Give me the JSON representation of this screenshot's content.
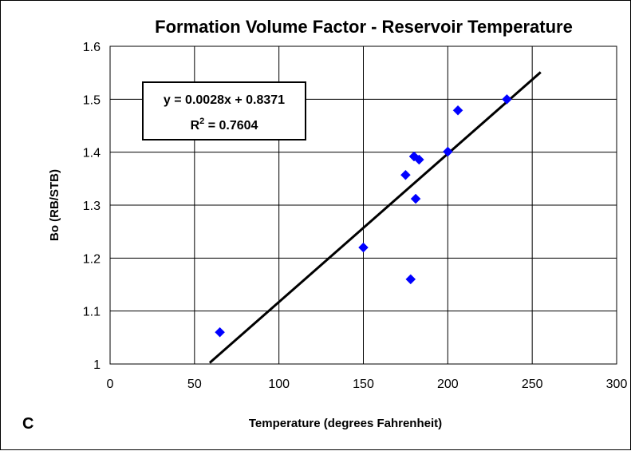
{
  "chart_data": {
    "type": "scatter",
    "title": "Formation Volume Factor - Reservoir Temperature",
    "xlabel": "Temperature (degrees Fahrenheit)",
    "ylabel": "Bo (RB/STB)",
    "xlim": [
      0,
      300
    ],
    "ylim": [
      1,
      1.6
    ],
    "x_ticks": [
      0,
      50,
      100,
      150,
      200,
      250,
      300
    ],
    "y_ticks": [
      1,
      1.1,
      1.2,
      1.3,
      1.4,
      1.5,
      1.6
    ],
    "x_tick_labels": [
      "0",
      "50",
      "100",
      "150",
      "200",
      "250",
      "300"
    ],
    "y_tick_labels": [
      "1",
      "1.1",
      "1.2",
      "1.3",
      "1.4",
      "1.5",
      "1.6"
    ],
    "grid": true,
    "series": [
      {
        "marker": "diamond",
        "color": "#0000ff",
        "points": [
          {
            "x": 65,
            "y": 1.06
          },
          {
            "x": 150,
            "y": 1.22
          },
          {
            "x": 175,
            "y": 1.357
          },
          {
            "x": 178,
            "y": 1.16
          },
          {
            "x": 180,
            "y": 1.392
          },
          {
            "x": 181,
            "y": 1.312
          },
          {
            "x": 183,
            "y": 1.386
          },
          {
            "x": 200,
            "y": 1.401
          },
          {
            "x": 206,
            "y": 1.479
          },
          {
            "x": 235,
            "y": 1.5
          }
        ]
      }
    ],
    "trendline": {
      "slope": 0.0028,
      "intercept": 0.8371,
      "x_range": [
        59,
        255
      ],
      "color": "#000000"
    },
    "annotation": {
      "equation": "y = 0.0028x + 0.8371",
      "r2_prefix": "R",
      "r2_sup": "2",
      "r2_value": " = 0.7604"
    },
    "panel_label": "C"
  }
}
